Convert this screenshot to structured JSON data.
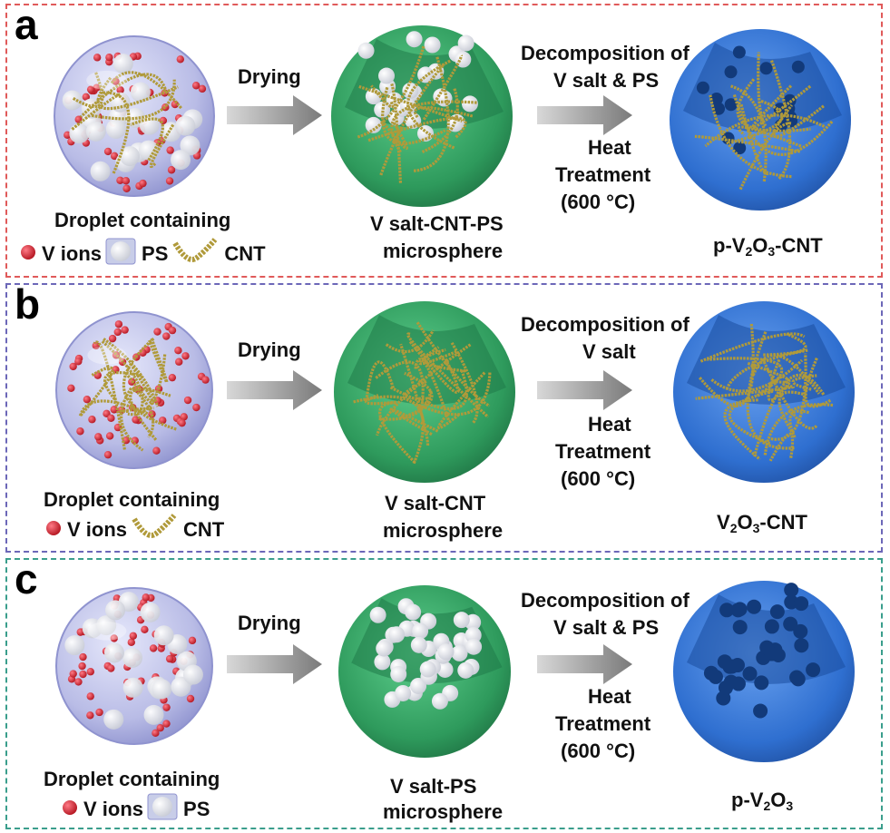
{
  "colors": {
    "panel_a_border": "#e05a5a",
    "panel_b_border": "#6c67b8",
    "panel_c_border": "#3a9e8c",
    "droplet": "#b9bce6",
    "v_ion": "#d8243a",
    "ps": "#ffffff",
    "cnt": "#b09a3a",
    "microsphere_green": "#2e9a5c",
    "product_blue": "#2f6fd0"
  },
  "panels": [
    {
      "label": "a",
      "droplet_title": "Droplet containing",
      "legend": [
        {
          "icon": "v-ion-icon",
          "text": "V ions"
        },
        {
          "icon": "ps-icon",
          "text": "PS"
        },
        {
          "icon": "cnt-icon",
          "text": "CNT"
        }
      ],
      "step1": "Drying",
      "intermediate": [
        "V salt-CNT-PS",
        "microsphere"
      ],
      "step2_top": [
        "Decomposition of",
        "V salt & PS"
      ],
      "step2_bottom": [
        "Heat",
        "Treatment",
        "(600 °C)"
      ],
      "product": {
        "prefix": "p-V",
        "sub1": "2",
        "mid": "O",
        "sub2": "3",
        "suffix": "-CNT"
      }
    },
    {
      "label": "b",
      "droplet_title": "Droplet containing",
      "legend": [
        {
          "icon": "v-ion-icon",
          "text": "V ions"
        },
        {
          "icon": "cnt-icon",
          "text": "CNT"
        }
      ],
      "step1": "Drying",
      "intermediate": [
        "V salt-CNT",
        "microsphere"
      ],
      "step2_top": [
        "Decomposition of",
        "V salt"
      ],
      "step2_bottom": [
        "Heat",
        "Treatment",
        "(600 °C)"
      ],
      "product": {
        "prefix": "V",
        "sub1": "2",
        "mid": "O",
        "sub2": "3",
        "suffix": "-CNT"
      }
    },
    {
      "label": "c",
      "droplet_title": "Droplet containing",
      "legend": [
        {
          "icon": "v-ion-icon",
          "text": "V ions"
        },
        {
          "icon": "ps-icon",
          "text": "PS"
        }
      ],
      "step1": "Drying",
      "intermediate": [
        "V salt-PS",
        "microsphere"
      ],
      "step2_top": [
        "Decomposition of",
        "V salt & PS"
      ],
      "step2_bottom": [
        "Heat",
        "Treatment",
        "(600 °C)"
      ],
      "product": {
        "prefix": "p-V",
        "sub1": "2",
        "mid": "O",
        "sub2": "3",
        "suffix": ""
      }
    }
  ]
}
